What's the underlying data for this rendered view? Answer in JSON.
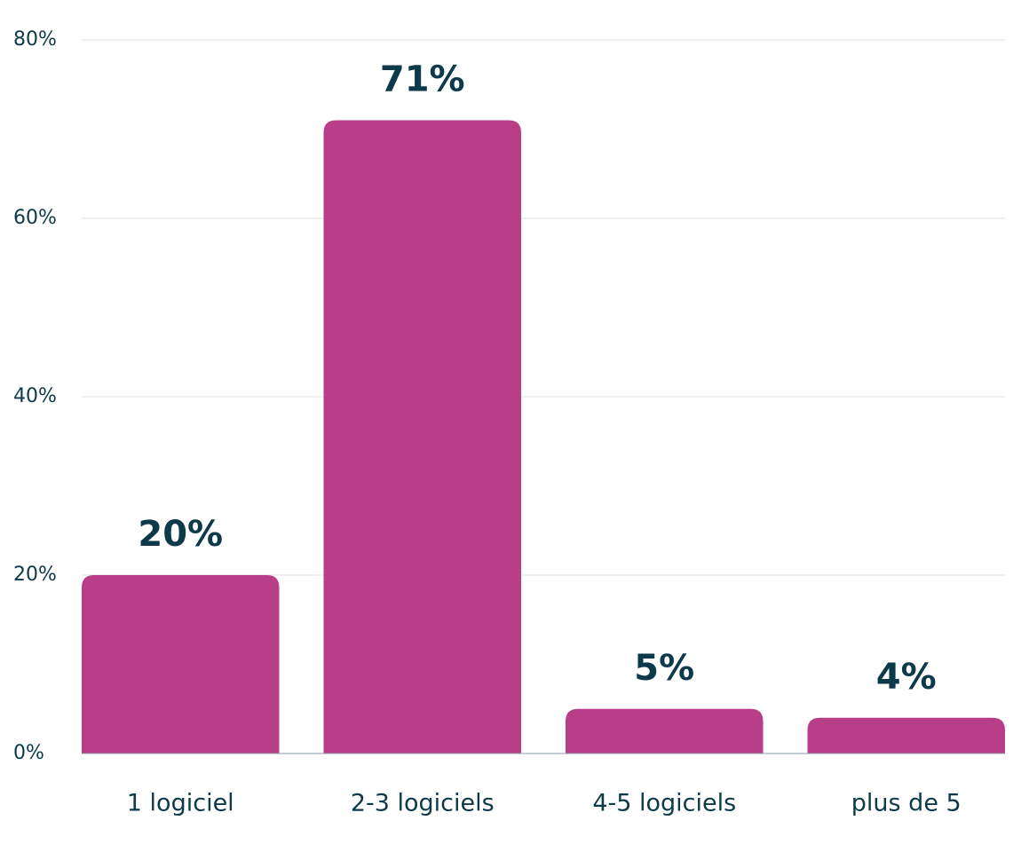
{
  "chart_data": {
    "type": "bar",
    "categories": [
      "1 logiciel",
      "2-3 logiciels",
      "4-5 logiciels",
      "plus de 5"
    ],
    "values": [
      20,
      71,
      5,
      4
    ],
    "value_labels": [
      "20%",
      "71%",
      "5%",
      "4%"
    ],
    "color": "#b73e87",
    "ylim": [
      0,
      80
    ],
    "yticks": [
      {
        "value": 0,
        "label": "0%"
      },
      {
        "value": 20,
        "label": "20%"
      },
      {
        "value": 40,
        "label": "40%"
      },
      {
        "value": 60,
        "label": "60%"
      },
      {
        "value": 80,
        "label": "80%"
      }
    ],
    "grid": true
  }
}
